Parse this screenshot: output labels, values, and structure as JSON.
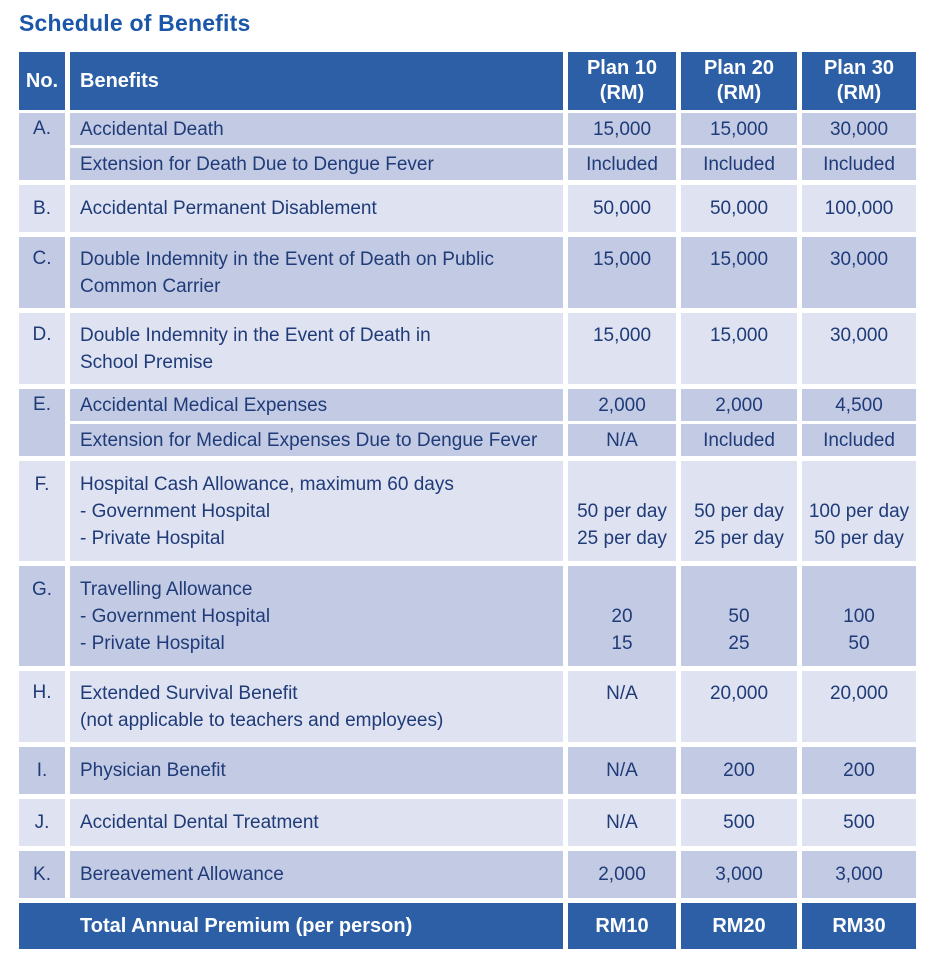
{
  "title": "Schedule of Benefits",
  "colors": {
    "header_bg": "#2C5FA6",
    "row_dark": "#C3CAE4",
    "row_light": "#DEE2F1",
    "text_navy": "#1F3B78",
    "title_blue": "#1B57A8",
    "header_text": "#FFFFFF"
  },
  "table": {
    "header": {
      "no": "No.",
      "benefits": "Benefits",
      "plans": [
        [
          "Plan 10",
          "(RM)"
        ],
        [
          "Plan 20",
          "(RM)"
        ],
        [
          "Plan 30",
          "(RM)"
        ]
      ]
    },
    "groups": [
      {
        "no": "A.",
        "shade": "dark",
        "rows": [
          {
            "benefit": [
              "Accidental Death"
            ],
            "values": [
              [
                "15,000"
              ],
              [
                "15,000"
              ],
              [
                "30,000"
              ]
            ]
          },
          {
            "benefit": [
              "Extension for Death Due to Dengue Fever"
            ],
            "values": [
              [
                "Included"
              ],
              [
                "Included"
              ],
              [
                "Included"
              ]
            ]
          }
        ]
      },
      {
        "no": "B.",
        "shade": "light",
        "rows": [
          {
            "benefit": [
              "Accidental Permanent Disablement"
            ],
            "values": [
              [
                "50,000"
              ],
              [
                "50,000"
              ],
              [
                "100,000"
              ]
            ]
          }
        ]
      },
      {
        "no": "C.",
        "shade": "dark",
        "rows": [
          {
            "benefit": [
              "Double Indemnity in the Event of Death on Public",
              "Common Carrier"
            ],
            "values": [
              [
                "15,000"
              ],
              [
                "15,000"
              ],
              [
                "30,000"
              ]
            ]
          }
        ]
      },
      {
        "no": "D.",
        "shade": "light",
        "rows": [
          {
            "benefit": [
              "Double Indemnity in the Event of Death in",
              "School Premise"
            ],
            "values": [
              [
                "15,000"
              ],
              [
                "15,000"
              ],
              [
                "30,000"
              ]
            ]
          }
        ]
      },
      {
        "no": "E.",
        "shade": "dark",
        "rows": [
          {
            "benefit": [
              "Accidental Medical Expenses"
            ],
            "values": [
              [
                "2,000"
              ],
              [
                "2,000"
              ],
              [
                "4,500"
              ]
            ]
          },
          {
            "benefit": [
              "Extension for Medical Expenses Due to Dengue Fever"
            ],
            "values": [
              [
                "N/A"
              ],
              [
                "Included"
              ],
              [
                "Included"
              ]
            ]
          }
        ]
      },
      {
        "no": "F.",
        "shade": "light",
        "rows": [
          {
            "benefit": [
              "Hospital Cash Allowance, maximum 60 days",
              "- Government Hospital",
              "- Private Hospital"
            ],
            "values": [
              [
                "",
                "50 per day",
                "25 per day"
              ],
              [
                "",
                "50 per day",
                "25 per day"
              ],
              [
                "",
                "100 per day",
                "50 per day"
              ]
            ]
          }
        ]
      },
      {
        "no": "G.",
        "shade": "dark",
        "rows": [
          {
            "benefit": [
              "Travelling Allowance",
              "- Government Hospital",
              "- Private Hospital"
            ],
            "values": [
              [
                "",
                "20",
                "15"
              ],
              [
                "",
                "50",
                "25"
              ],
              [
                "",
                "100",
                "50"
              ]
            ]
          }
        ]
      },
      {
        "no": "H.",
        "shade": "light",
        "rows": [
          {
            "benefit": [
              "Extended Survival Benefit",
              "(not applicable to teachers and employees)"
            ],
            "values": [
              [
                "N/A"
              ],
              [
                "20,000"
              ],
              [
                "20,000"
              ]
            ]
          }
        ]
      },
      {
        "no": "I.",
        "shade": "dark",
        "rows": [
          {
            "benefit": [
              "Physician Benefit"
            ],
            "values": [
              [
                "N/A"
              ],
              [
                "200"
              ],
              [
                "200"
              ]
            ]
          }
        ]
      },
      {
        "no": "J.",
        "shade": "light",
        "rows": [
          {
            "benefit": [
              "Accidental Dental Treatment"
            ],
            "values": [
              [
                "N/A"
              ],
              [
                "500"
              ],
              [
                "500"
              ]
            ]
          }
        ]
      },
      {
        "no": "K.",
        "shade": "dark",
        "rows": [
          {
            "benefit": [
              "Bereavement Allowance"
            ],
            "values": [
              [
                "2,000"
              ],
              [
                "3,000"
              ],
              [
                "3,000"
              ]
            ]
          }
        ]
      }
    ],
    "footer": {
      "label": "Total Annual Premium (per person)",
      "values": [
        "RM10",
        "RM20",
        "RM30"
      ]
    }
  }
}
